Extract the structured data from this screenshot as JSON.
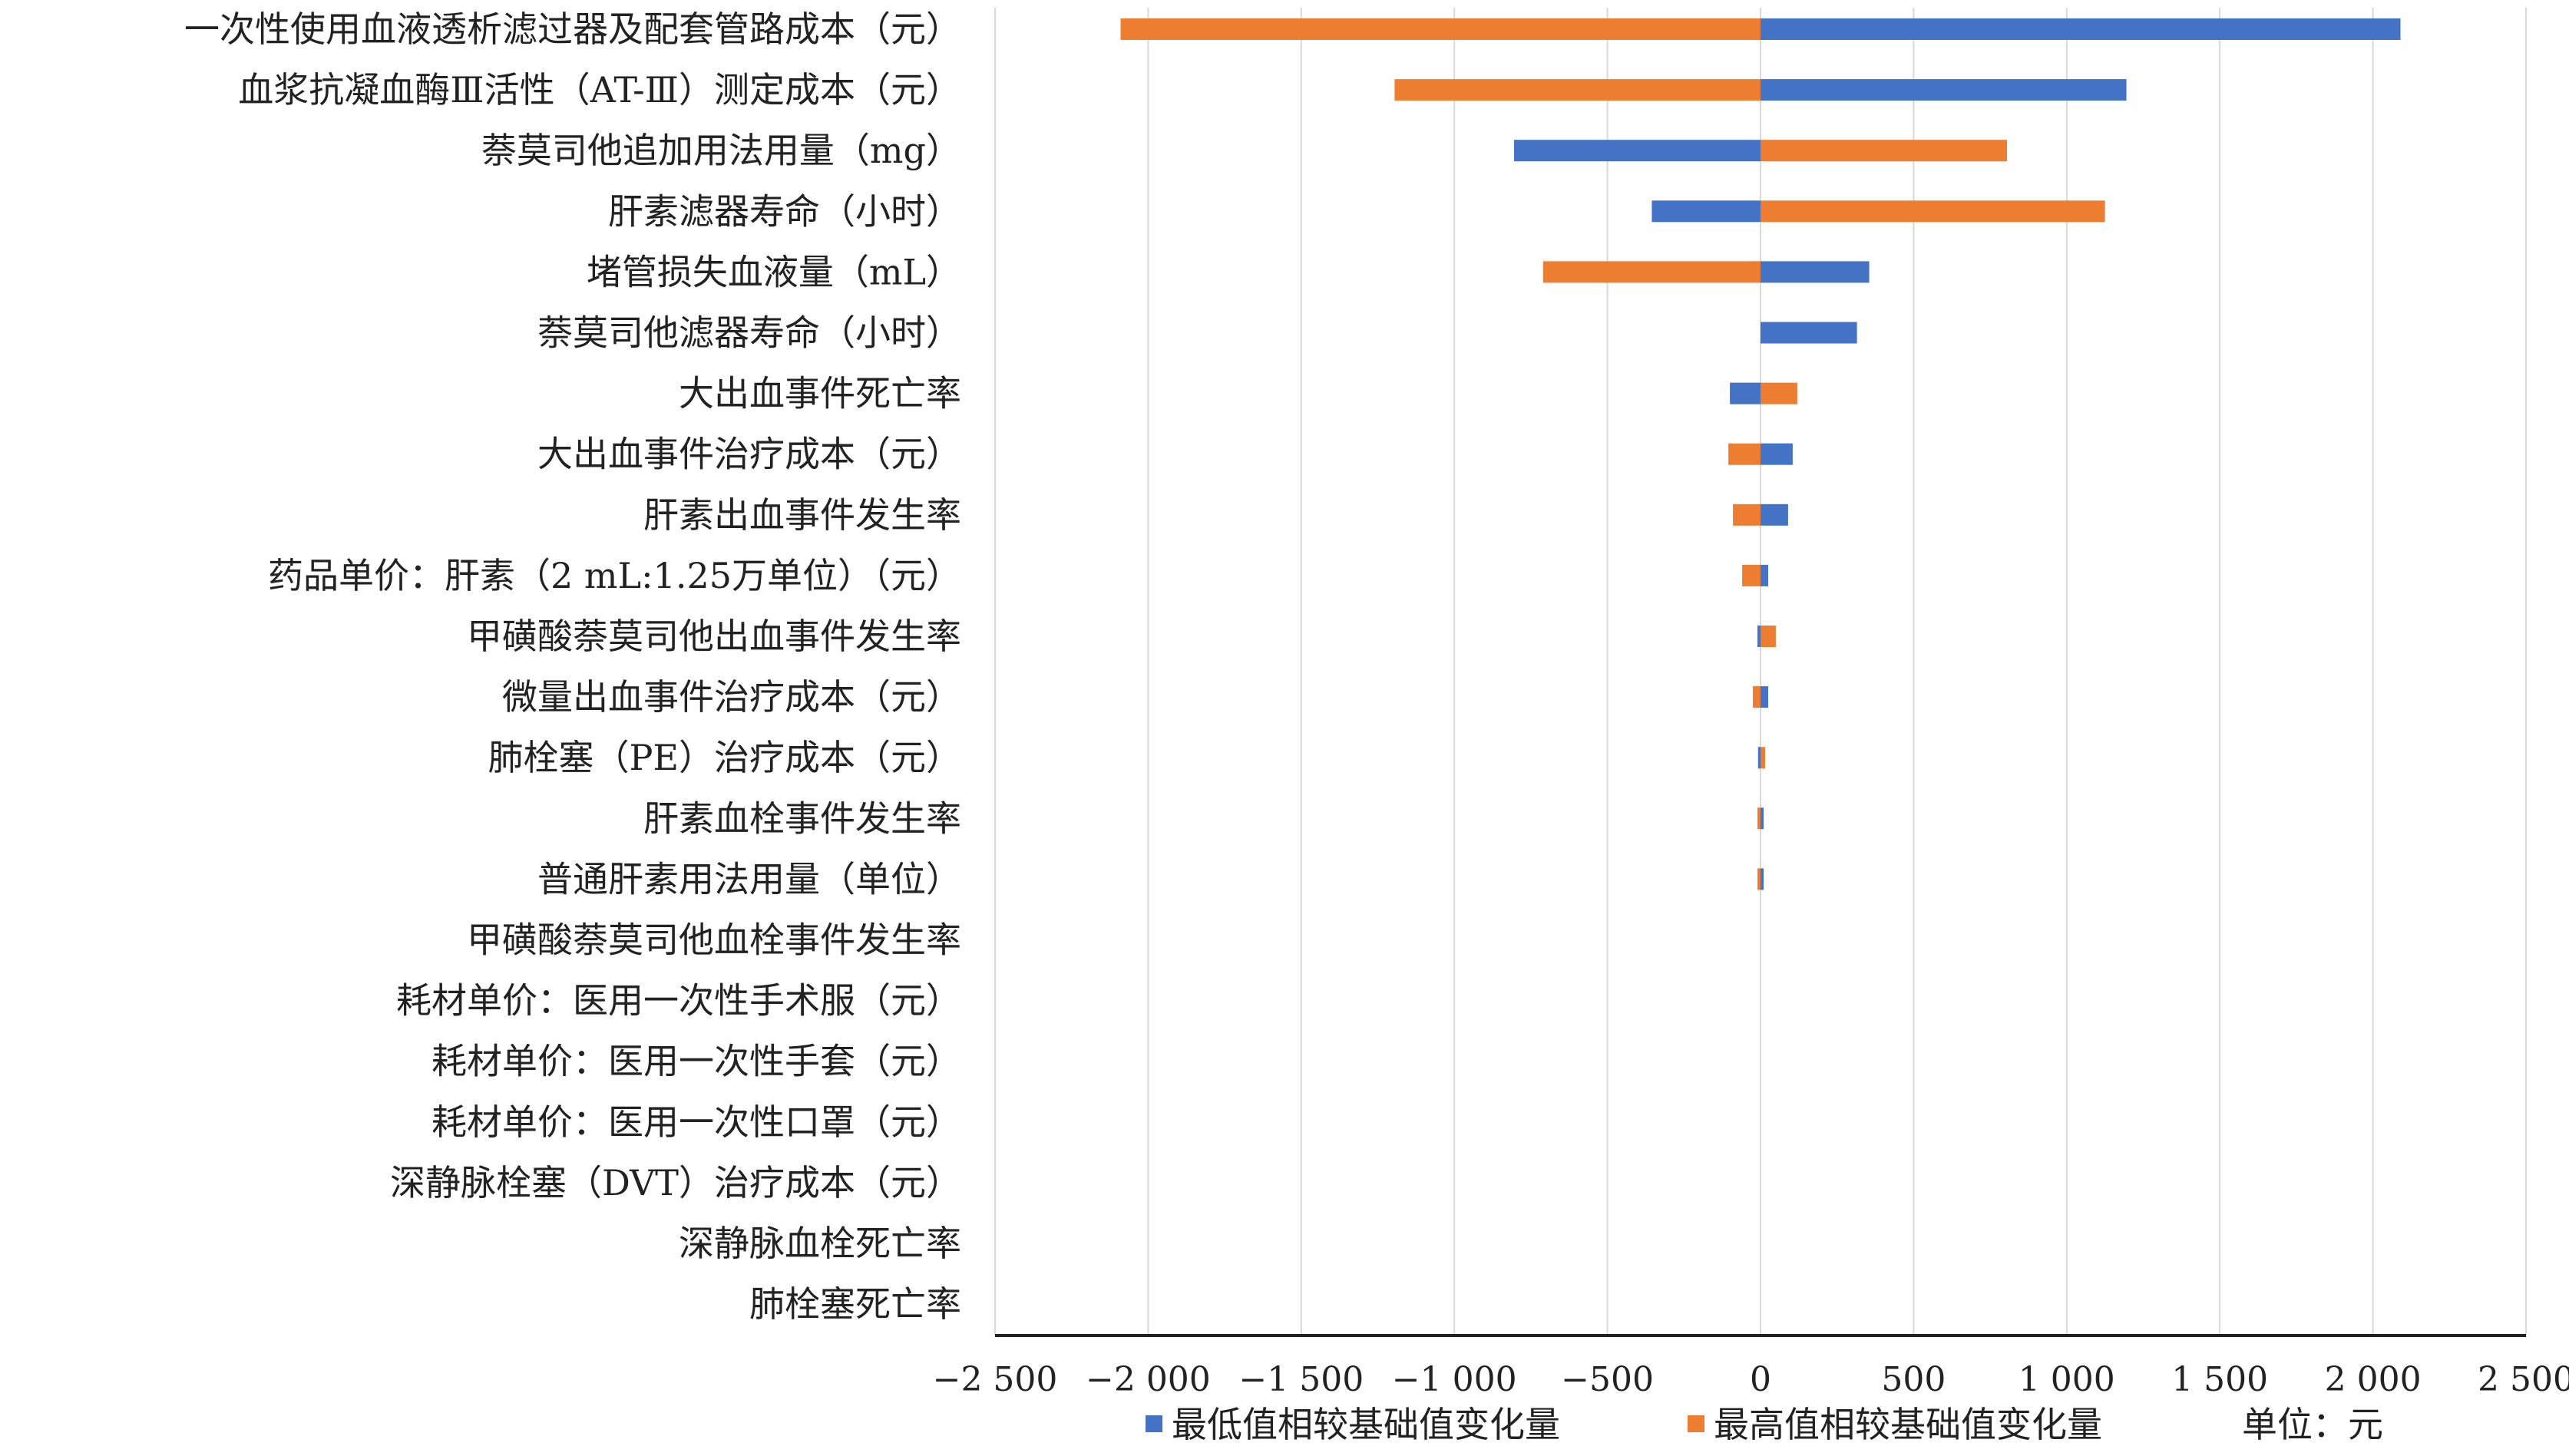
{
  "chart_data": {
    "type": "bar",
    "orientation": "horizontal",
    "subtype": "tornado",
    "categories": [
      "一次性使用血液透析滤过器及配套管路成本（元）",
      "血浆抗凝血酶Ⅲ活性（AT-Ⅲ）测定成本（元）",
      "萘莫司他追加用法用量（mg）",
      "肝素滤器寿命（小时）",
      "堵管损失血液量（mL）",
      "萘莫司他滤器寿命（小时）",
      "大出血事件死亡率",
      "大出血事件治疗成本（元）",
      "肝素出血事件发生率",
      "药品单价：肝素（2 mL:1.25万单位）（元）",
      "甲磺酸萘莫司他出血事件发生率",
      "微量出血事件治疗成本（元）",
      "肺栓塞（PE）治疗成本（元）",
      "肝素血栓事件发生率",
      "普通肝素用法用量（单位）",
      "甲磺酸萘莫司他血栓事件发生率",
      "耗材单价：医用一次性手术服（元）",
      "耗材单价：医用一次性手套（元）",
      "耗材单价：医用一次性口罩（元）",
      "深静脉栓塞（DVT）治疗成本（元）",
      "深静脉血栓死亡率",
      "肺栓塞死亡率"
    ],
    "series": [
      {
        "name": "最低值相较基础值变化量",
        "color": "#4472C4",
        "values": [
          2090,
          1195,
          -805,
          -355,
          355,
          315,
          -100,
          105,
          90,
          25,
          -10,
          25,
          -8,
          10,
          10,
          0,
          0,
          0,
          0,
          0,
          0,
          0
        ]
      },
      {
        "name": "最高值相较基础值变化量",
        "color": "#ED7D31",
        "values": [
          -2090,
          -1195,
          805,
          1125,
          -710,
          0,
          120,
          -105,
          -90,
          -60,
          50,
          -25,
          15,
          -10,
          -10,
          0,
          0,
          0,
          0,
          0,
          0,
          0
        ]
      }
    ],
    "xlim": [
      -2500,
      2500
    ],
    "xticks": [
      -2500,
      -2000,
      -1500,
      -1000,
      -500,
      0,
      500,
      1000,
      1500,
      2000,
      2500
    ],
    "xtick_labels": [
      "−2 500",
      "−2 000",
      "−1 500",
      "−1 000",
      "−500",
      "0",
      "500",
      "1 000",
      "1 500",
      "2 000",
      "2 500"
    ],
    "grid": true,
    "legend_position": "bottom",
    "unit_note": "单位：元"
  }
}
